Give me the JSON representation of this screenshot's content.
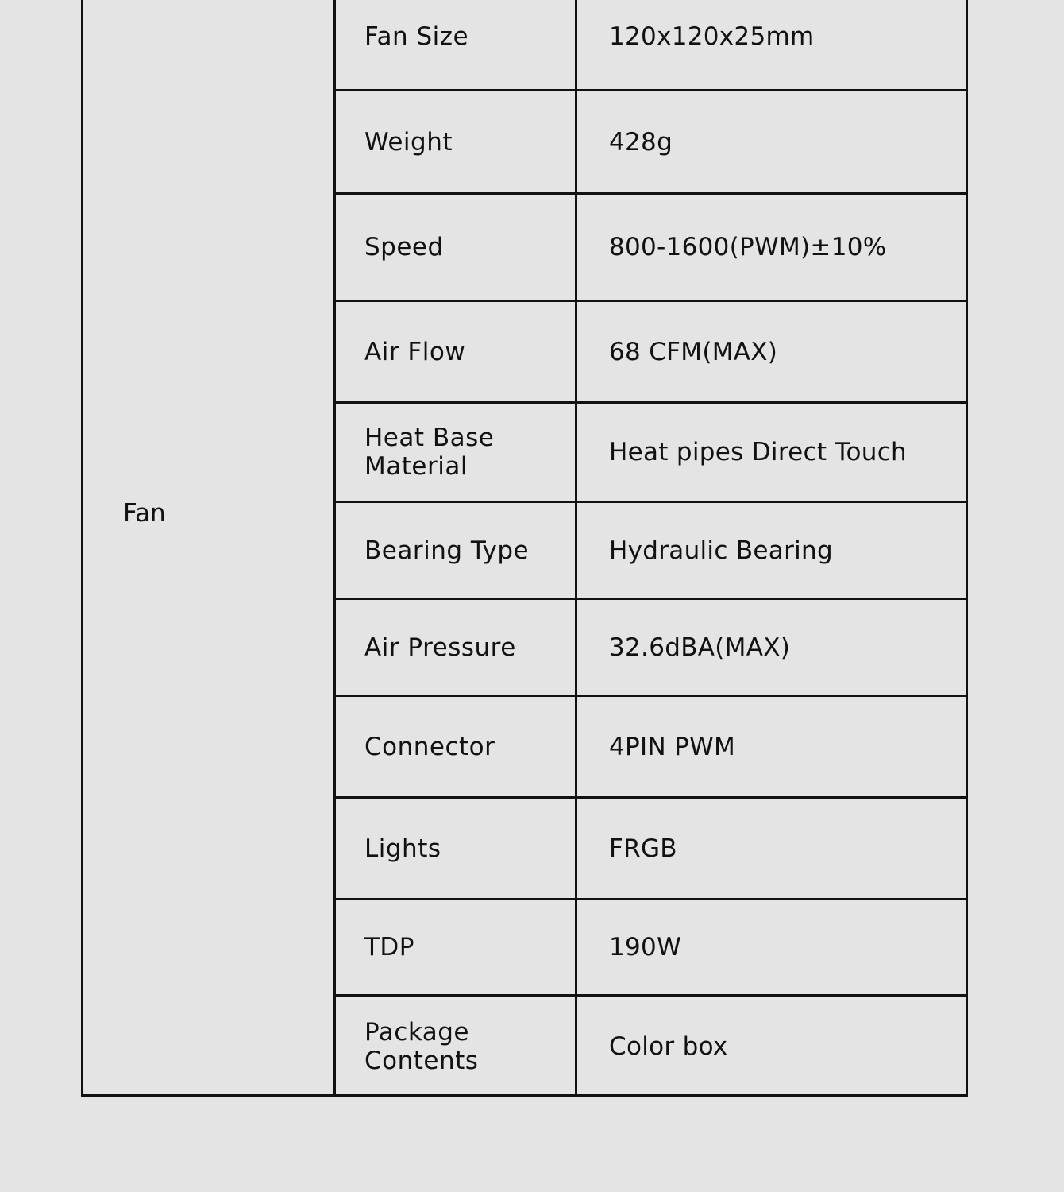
{
  "group_label": "Fan",
  "rows": [
    {
      "label": "Fan Size",
      "value": "120x120x25mm"
    },
    {
      "label": "Weight",
      "value": "428g"
    },
    {
      "label": "Speed",
      "value": "800-1600(PWM)±10%"
    },
    {
      "label": "Air Flow",
      "value": "68 CFM(MAX)"
    },
    {
      "label": "Heat Base Material",
      "value": "Heat pipes Direct Touch"
    },
    {
      "label": "Bearing Type",
      "value": "Hydraulic Bearing"
    },
    {
      "label": "Air Pressure",
      "value": "32.6dBA(MAX)"
    },
    {
      "label": "Connector",
      "value": "4PIN PWM"
    },
    {
      "label": "Lights",
      "value": "FRGB"
    },
    {
      "label": "TDP",
      "value": "190W"
    },
    {
      "label": "Package Contents",
      "value": "Color box"
    }
  ]
}
